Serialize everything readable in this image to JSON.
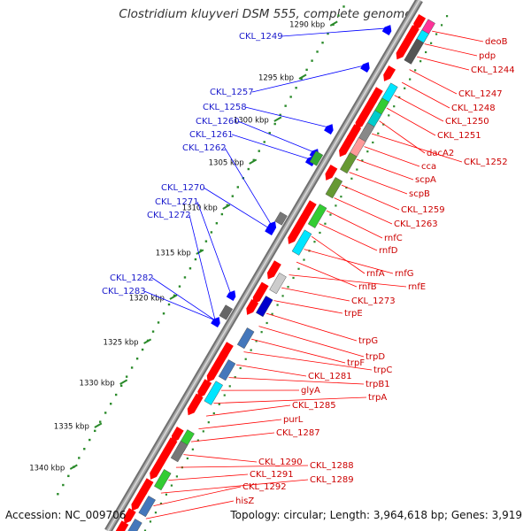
{
  "title": "Clostridium kluyveri DSM 555, complete genome",
  "footer": {
    "accession": "Accession: NC_009706",
    "summary": "Topology: circular; Length: 3,964,618 bp; Genes: 3,919"
  },
  "colors": {
    "forward_gene": "#0000ff",
    "forward_label": "#1a1acc",
    "reverse_gene": "#ff0000",
    "reverse_label": "#cc0000",
    "tick": "#2a8a2a",
    "backbone": "#9a9a9a"
  },
  "scale_labels": [
    "1290 kbp",
    "1295 kbp",
    "1300 kbp",
    "1305 kbp",
    "1310 kbp",
    "1315 kbp",
    "1320 kbp",
    "1325 kbp",
    "1330 kbp",
    "1335 kbp",
    "1340 kbp"
  ],
  "forward_labels": [
    "CKL_1249",
    "CKL_1257",
    "CKL_1258",
    "CKL_1260",
    "CKL_1261",
    "CKL_1262",
    "CKL_1270",
    "CKL_1271",
    "CKL_1272",
    "CKL_1282",
    "CKL_1283"
  ],
  "reverse_labels": [
    "deoB",
    "pdp",
    "CKL_1244",
    "CKL_1247",
    "CKL_1248",
    "CKL_1250",
    "CKL_1251",
    "dacA2",
    "CKL_1252",
    "cca",
    "scpA",
    "scpB",
    "CKL_1259",
    "CKL_1263",
    "rnfC",
    "rnfD",
    "rnfA",
    "rnfG",
    "rnfB",
    "rnfE",
    "CKL_1273",
    "trpE",
    "trpG",
    "trpD",
    "trpF",
    "trpC",
    "CKL_1281",
    "trpB1",
    "glyA",
    "trpA",
    "CKL_1285",
    "purL",
    "CKL_1287",
    "CKL_1290",
    "CKL_1288",
    "CKL_1291",
    "CKL_1289",
    "CKL_1292",
    "hisZ"
  ]
}
